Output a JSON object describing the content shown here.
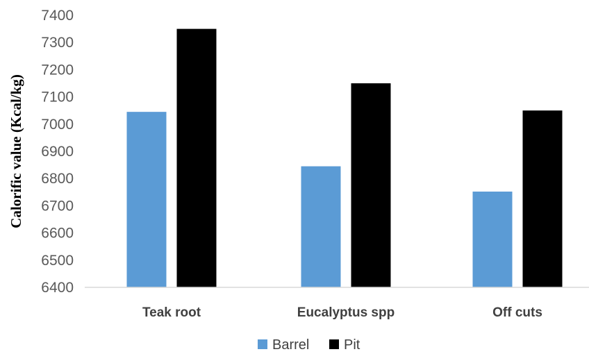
{
  "chart_data": {
    "type": "bar",
    "ylabel": "Calorific value (Kcal/kg)",
    "xlabel": "",
    "categories": [
      "Teak root",
      "Eucalyptus spp",
      "Off cuts"
    ],
    "series": [
      {
        "name": "Barrel",
        "values": [
          7045,
          6845,
          6752
        ],
        "color": "#5B9BD5"
      },
      {
        "name": "Pit",
        "values": [
          7350,
          7150,
          7050
        ],
        "color": "#000000"
      }
    ],
    "ylim": [
      6400,
      7400
    ],
    "yticks": [
      6400,
      6500,
      6600,
      6700,
      6800,
      6900,
      7000,
      7100,
      7200,
      7300,
      7400
    ],
    "grid": false,
    "legend": "bottom-center"
  }
}
